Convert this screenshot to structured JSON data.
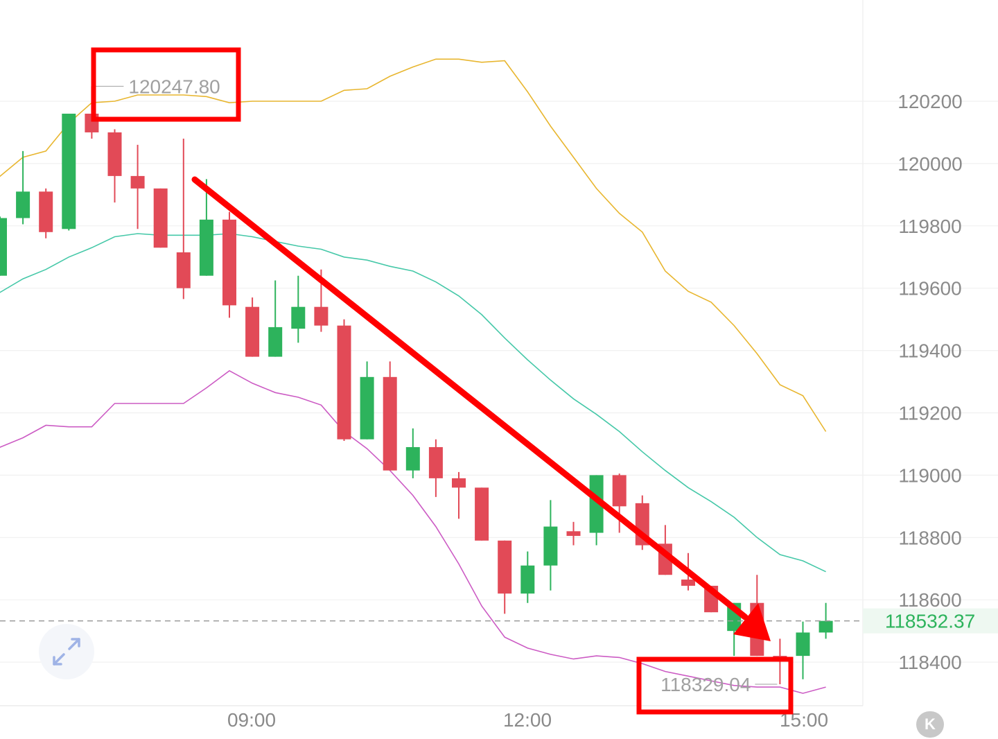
{
  "chart_data": {
    "type": "candlestick",
    "y_axis": {
      "ticks": [
        120200,
        120000,
        119800,
        119600,
        119400,
        119200,
        119000,
        118800,
        118600,
        118400
      ],
      "range": [
        118270,
        120500
      ],
      "grid": true,
      "position": "right"
    },
    "x_axis": {
      "tick_labels": [
        "09:00",
        "12:00",
        "15:00"
      ]
    },
    "candles": [
      {
        "o": 119640,
        "c": 119825,
        "h": 119830,
        "l": 119640
      },
      {
        "o": 119825,
        "c": 119910,
        "h": 120040,
        "l": 119805
      },
      {
        "o": 119910,
        "c": 119780,
        "h": 119920,
        "l": 119760
      },
      {
        "o": 119790,
        "c": 120160,
        "h": 120160,
        "l": 119785
      },
      {
        "o": 120160,
        "c": 120100,
        "h": 120247.8,
        "l": 120080
      },
      {
        "o": 120100,
        "c": 119960,
        "h": 120110,
        "l": 119875
      },
      {
        "o": 119960,
        "c": 119920,
        "h": 120060,
        "l": 119790
      },
      {
        "o": 119920,
        "c": 119730,
        "h": 119920,
        "l": 119730
      },
      {
        "o": 119715,
        "c": 119600,
        "h": 120080,
        "l": 119565
      },
      {
        "o": 119640,
        "c": 119820,
        "h": 119950,
        "l": 119640
      },
      {
        "o": 119820,
        "c": 119545,
        "h": 119845,
        "l": 119505
      },
      {
        "o": 119540,
        "c": 119380,
        "h": 119570,
        "l": 119380
      },
      {
        "o": 119380,
        "c": 119475,
        "h": 119625,
        "l": 119380
      },
      {
        "o": 119470,
        "c": 119540,
        "h": 119640,
        "l": 119425
      },
      {
        "o": 119540,
        "c": 119480,
        "h": 119660,
        "l": 119460
      },
      {
        "o": 119480,
        "c": 119115,
        "h": 119500,
        "l": 119110
      },
      {
        "o": 119115,
        "c": 119315,
        "h": 119365,
        "l": 119115
      },
      {
        "o": 119315,
        "c": 119015,
        "h": 119365,
        "l": 119015
      },
      {
        "o": 119015,
        "c": 119090,
        "h": 119150,
        "l": 118990
      },
      {
        "o": 119090,
        "c": 118990,
        "h": 119115,
        "l": 118930
      },
      {
        "o": 118990,
        "c": 118960,
        "h": 119010,
        "l": 118860
      },
      {
        "o": 118960,
        "c": 118790,
        "h": 118960,
        "l": 118790
      },
      {
        "o": 118790,
        "c": 118620,
        "h": 118790,
        "l": 118555
      },
      {
        "o": 118620,
        "c": 118710,
        "h": 118755,
        "l": 118590
      },
      {
        "o": 118710,
        "c": 118835,
        "h": 118920,
        "l": 118630
      },
      {
        "o": 118820,
        "c": 118805,
        "h": 118850,
        "l": 118775
      },
      {
        "o": 118815,
        "c": 119000,
        "h": 119000,
        "l": 118775
      },
      {
        "o": 119000,
        "c": 118900,
        "h": 119005,
        "l": 118815
      },
      {
        "o": 118910,
        "c": 118775,
        "h": 118935,
        "l": 118760
      },
      {
        "o": 118780,
        "c": 118680,
        "h": 118840,
        "l": 118680
      },
      {
        "o": 118665,
        "c": 118645,
        "h": 118750,
        "l": 118630
      },
      {
        "o": 118645,
        "c": 118560,
        "h": 118645,
        "l": 118560
      },
      {
        "o": 118500,
        "c": 118590,
        "h": 118590,
        "l": 118420
      },
      {
        "o": 118590,
        "c": 118420,
        "h": 118680,
        "l": 118420
      },
      {
        "o": 118420,
        "c": 118415,
        "h": 118475,
        "l": 118329.04
      },
      {
        "o": 118420,
        "c": 118495,
        "h": 118530,
        "l": 118345
      },
      {
        "o": 118495,
        "c": 118532.37,
        "h": 118590,
        "l": 118475
      }
    ],
    "bands": {
      "upper": [
        119950,
        120020,
        120040,
        120130,
        120195,
        120200,
        120220,
        120220,
        120220,
        120215,
        120195,
        120200,
        120200,
        120200,
        120200,
        120235,
        120240,
        120280,
        120310,
        120335,
        120335,
        120325,
        120330,
        120230,
        120120,
        120020,
        119920,
        119840,
        119780,
        119655,
        119590,
        119555,
        119480,
        119390,
        119290,
        119255,
        119140
      ],
      "mid": [
        119580,
        119630,
        119660,
        119700,
        119730,
        119765,
        119775,
        119770,
        119770,
        119770,
        119775,
        119765,
        119750,
        119735,
        119725,
        119700,
        119690,
        119670,
        119655,
        119620,
        119575,
        119515,
        119440,
        119370,
        119305,
        119245,
        119195,
        119140,
        119075,
        119015,
        118960,
        118915,
        118865,
        118800,
        118745,
        118725,
        118690
      ],
      "lower": [
        119085,
        119120,
        119160,
        119155,
        119155,
        119230,
        119230,
        119230,
        119230,
        119280,
        119335,
        119295,
        119265,
        119250,
        119225,
        119140,
        119085,
        119015,
        118935,
        118835,
        118715,
        118580,
        118480,
        118445,
        118425,
        118410,
        118420,
        118415,
        118395,
        118370,
        118355,
        118340,
        118325,
        118320,
        118320,
        118300,
        118320
      ]
    },
    "annotations": {
      "high_label": "120247.80",
      "low_label": "118329.04",
      "current_price": "118532.37"
    },
    "colors": {
      "up": "#2db35c",
      "down": "#e24a57",
      "upper_band": "#e8b62f",
      "mid_band": "#45c8a8",
      "lower_band": "#cc5bc4",
      "markup": "#ff0000",
      "current_price": "#2db35c"
    }
  },
  "icons": {
    "expand": "expand-arrows-icon",
    "k": "k-logo-icon"
  },
  "k_letter": "K"
}
